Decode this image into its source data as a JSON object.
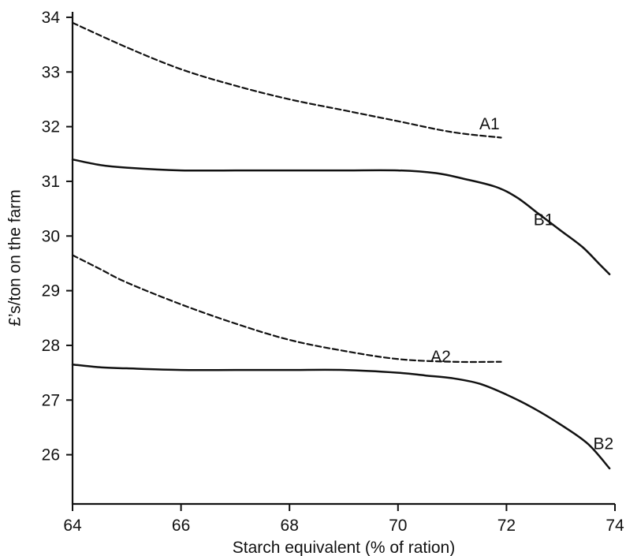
{
  "chart_data": {
    "type": "line",
    "title": "",
    "xlabel": "Starch equivalent (% of ration)",
    "ylabel": "£’s/ton on the farm",
    "xlim": [
      64,
      74
    ],
    "ylim": [
      25.1,
      34.1
    ],
    "xticks": [
      "64",
      "66",
      "68",
      "70",
      "72",
      "74"
    ],
    "yticks": [
      "26",
      "27",
      "28",
      "29",
      "30",
      "31",
      "32",
      "33",
      "34"
    ],
    "grid": false,
    "legend": "none",
    "series": [
      {
        "name": "A1",
        "style": "dashed",
        "x": [
          64,
          65,
          66,
          67,
          68,
          69,
          70,
          71,
          71.9
        ],
        "y": [
          33.9,
          33.45,
          33.05,
          32.75,
          32.5,
          32.3,
          32.1,
          31.9,
          31.8
        ]
      },
      {
        "name": "B1",
        "style": "solid",
        "x": [
          64,
          64.5,
          65,
          66,
          67,
          68,
          69,
          70,
          70.7,
          71.2,
          71.8,
          72.2,
          72.6,
          73,
          73.4,
          73.7,
          73.9
        ],
        "y": [
          31.4,
          31.3,
          31.25,
          31.2,
          31.2,
          31.2,
          31.2,
          31.2,
          31.15,
          31.05,
          30.9,
          30.7,
          30.4,
          30.1,
          29.8,
          29.5,
          29.3
        ]
      },
      {
        "name": "A2",
        "style": "dashed",
        "x": [
          64,
          64.5,
          65,
          66,
          67,
          68,
          69,
          70,
          71,
          71.9
        ],
        "y": [
          29.65,
          29.4,
          29.15,
          28.75,
          28.4,
          28.1,
          27.9,
          27.75,
          27.7,
          27.7
        ]
      },
      {
        "name": "B2",
        "style": "solid",
        "x": [
          64,
          64.5,
          65,
          66,
          67,
          68,
          69,
          70,
          70.5,
          71,
          71.5,
          72,
          72.5,
          73,
          73.5,
          73.9
        ],
        "y": [
          27.65,
          27.6,
          27.58,
          27.55,
          27.55,
          27.55,
          27.55,
          27.5,
          27.45,
          27.4,
          27.3,
          27.1,
          26.85,
          26.55,
          26.2,
          25.75
        ]
      }
    ],
    "annotations": [
      {
        "text": "A1",
        "x": 71.5,
        "y": 32.05
      },
      {
        "text": "B1",
        "x": 72.5,
        "y": 30.3
      },
      {
        "text": "A2",
        "x": 70.6,
        "y": 27.8
      },
      {
        "text": "B2",
        "x": 73.6,
        "y": 26.2
      }
    ]
  }
}
